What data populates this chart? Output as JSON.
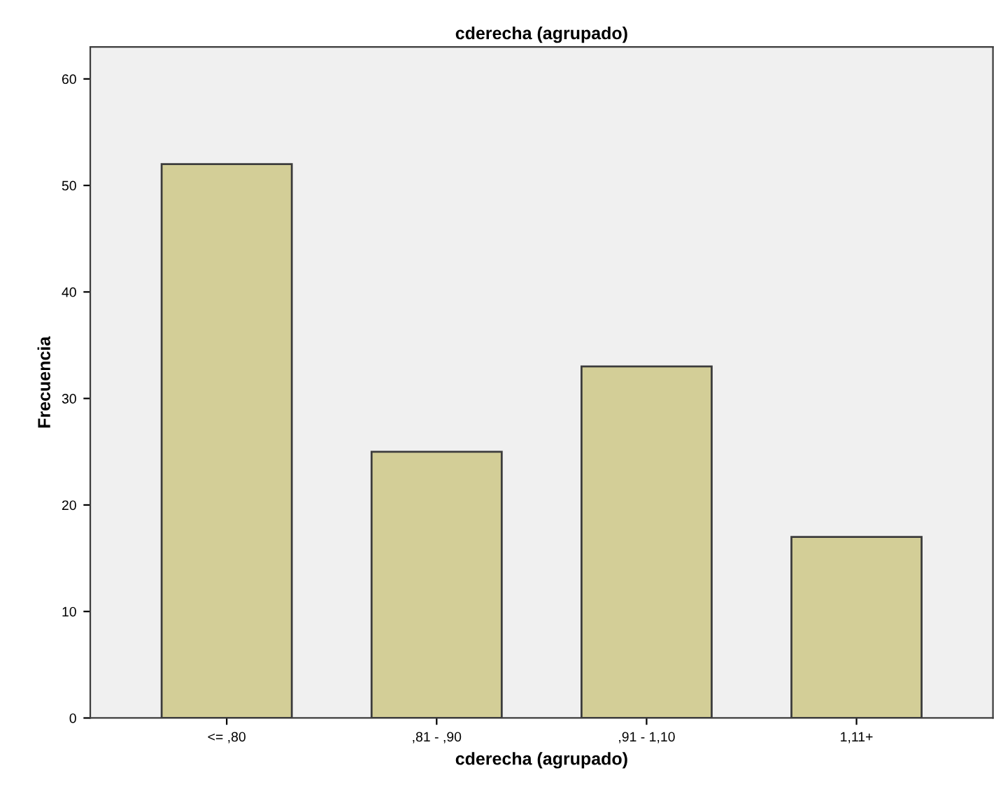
{
  "chart_data": {
    "type": "bar",
    "title": "cderecha (agrupado)",
    "xlabel": "cderecha (agrupado)",
    "ylabel": "Frecuencia",
    "categories": [
      "<= ,80",
      ",81 - ,90",
      ",91 - 1,10",
      "1,11+"
    ],
    "values": [
      52,
      25,
      33,
      17
    ],
    "color": "#d3ce97",
    "ylim": [
      0,
      63
    ],
    "yticks": [
      0,
      10,
      20,
      30,
      40,
      50,
      60
    ],
    "grid": false
  }
}
